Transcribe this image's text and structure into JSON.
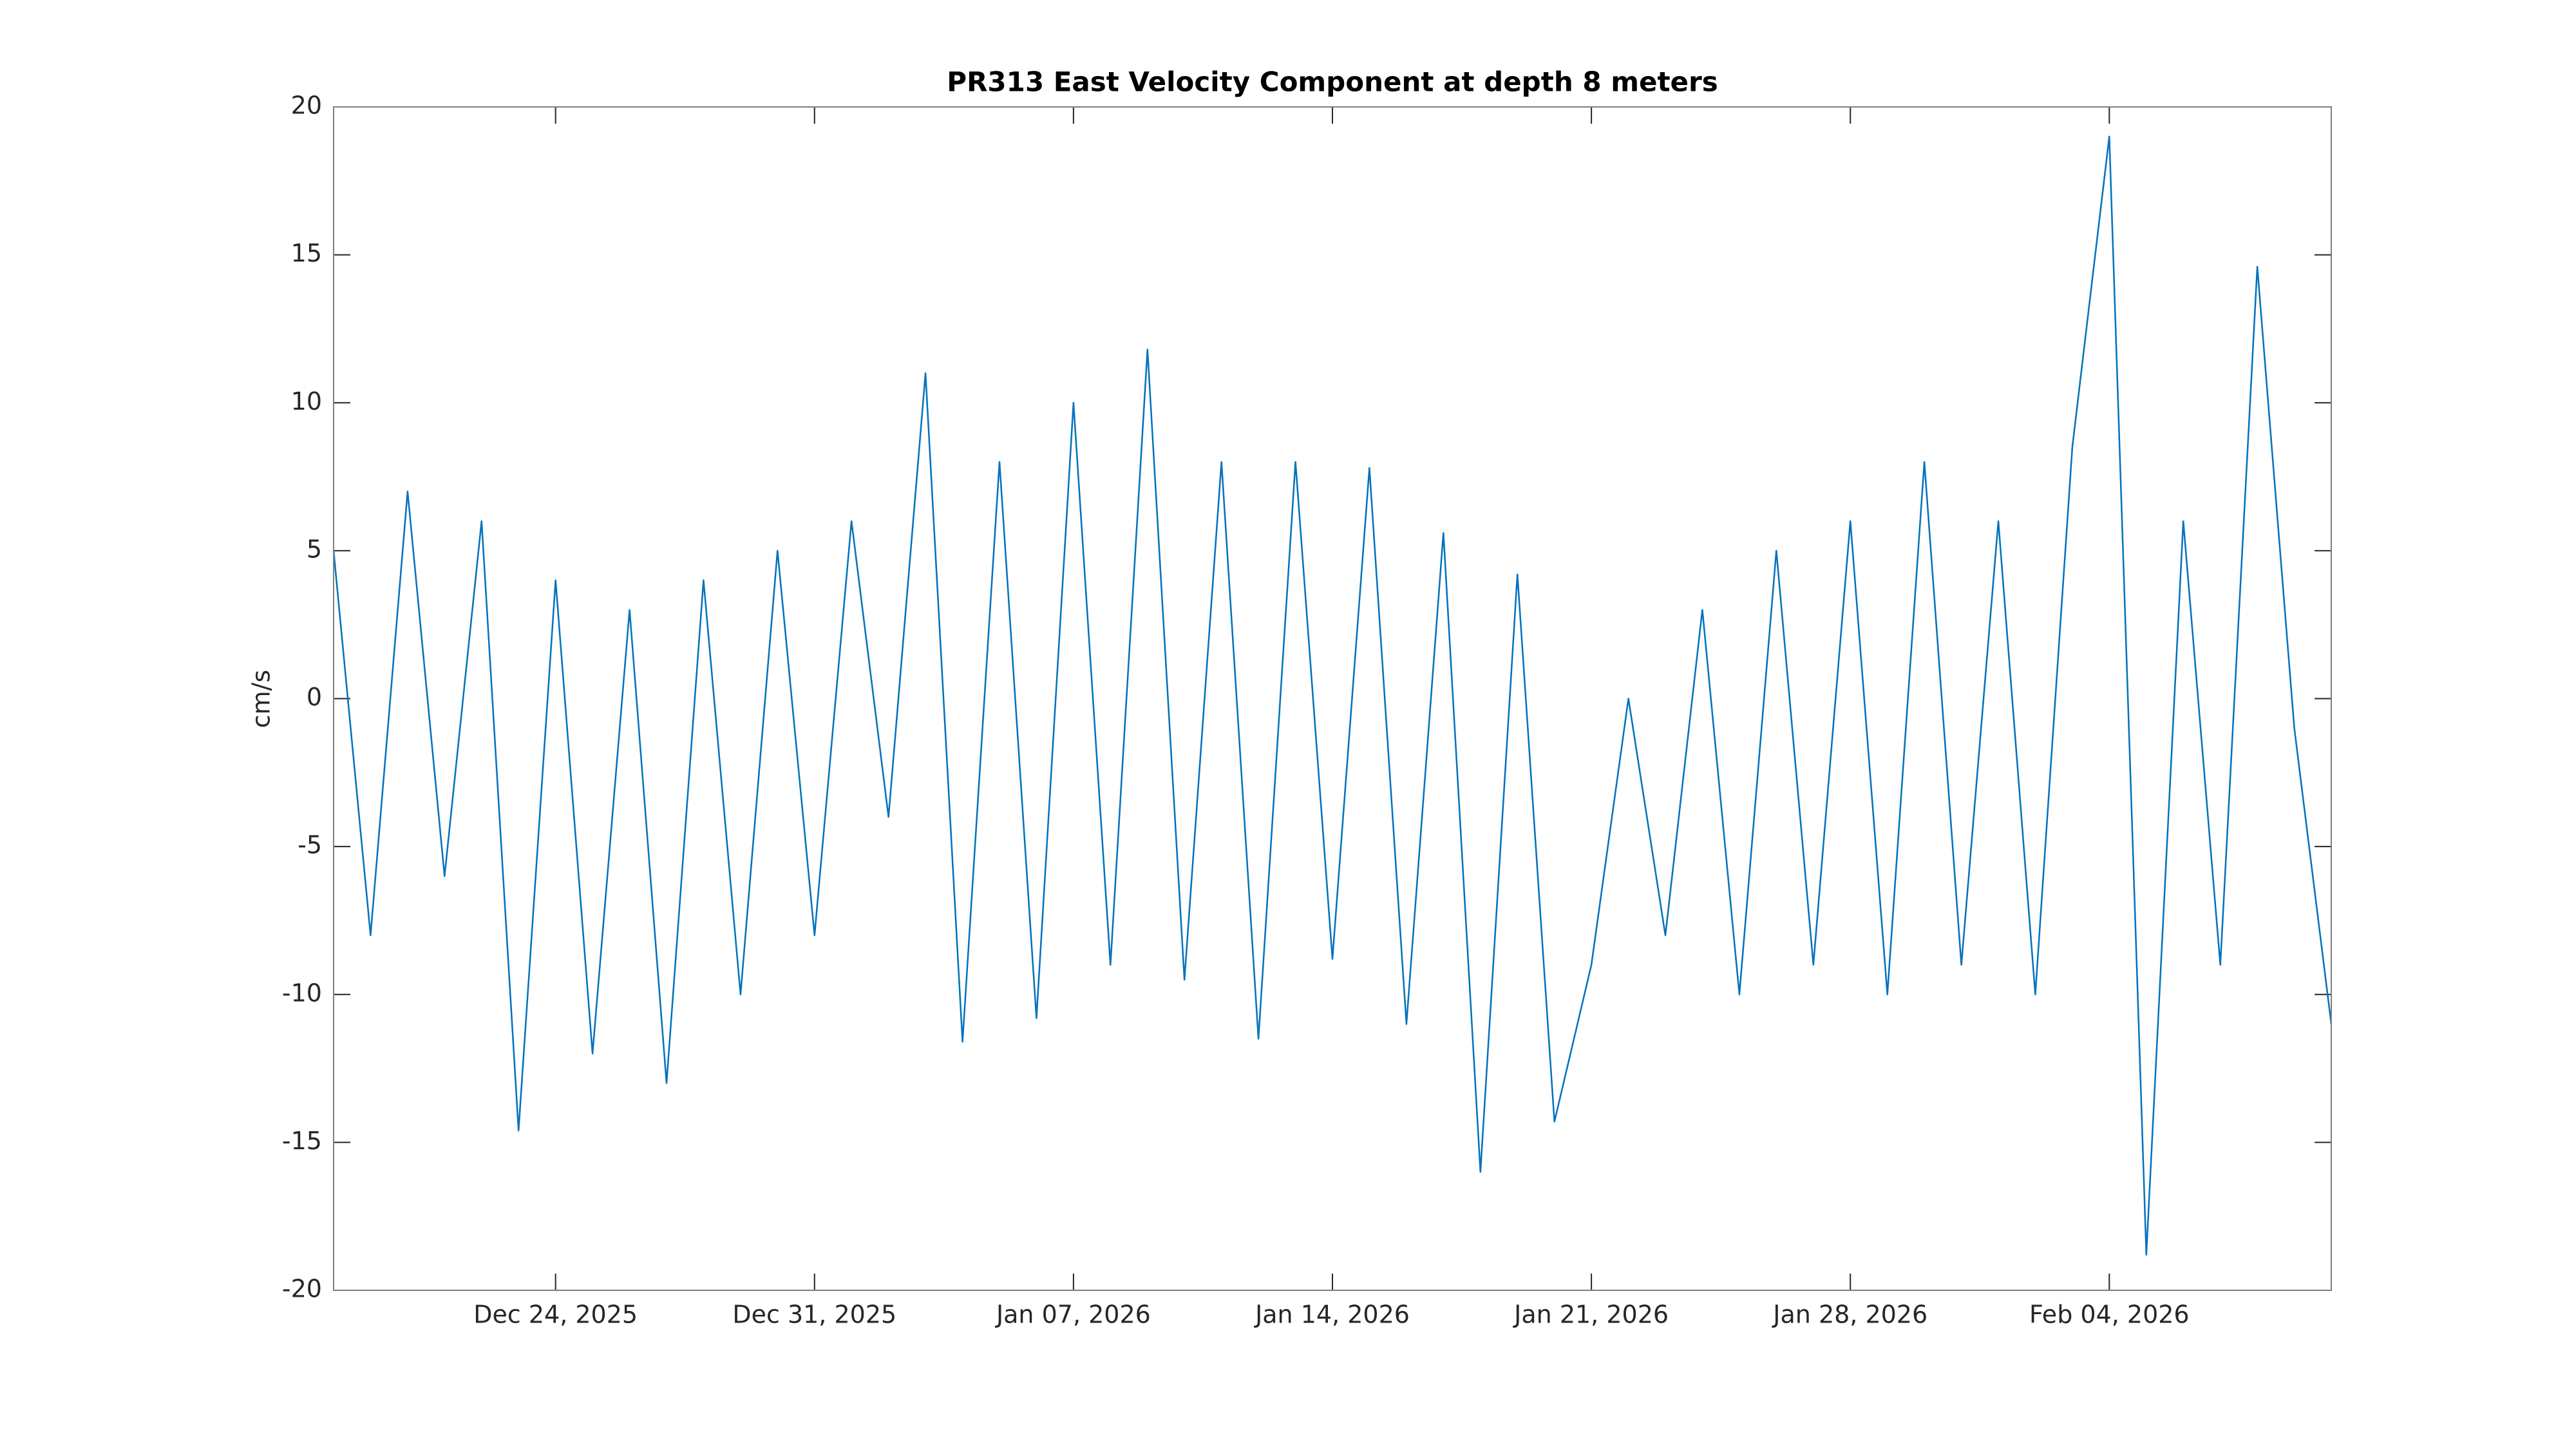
{
  "chart_data": {
    "type": "line",
    "title": "PR313 East Velocity Component at depth 8 meters",
    "ylabel": "cm/s",
    "color": "#0072bd",
    "x": [
      "2025-12-18",
      "2025-12-19",
      "2025-12-20",
      "2025-12-21",
      "2025-12-22",
      "2025-12-23",
      "2025-12-24",
      "2025-12-25",
      "2025-12-26",
      "2025-12-27",
      "2025-12-28",
      "2025-12-29",
      "2025-12-30",
      "2025-12-31",
      "2026-01-01",
      "2026-01-02",
      "2026-01-03",
      "2026-01-04",
      "2026-01-05",
      "2026-01-06",
      "2026-01-07",
      "2026-01-08",
      "2026-01-09",
      "2026-01-10",
      "2026-01-11",
      "2026-01-12",
      "2026-01-13",
      "2026-01-14",
      "2026-01-15",
      "2026-01-16",
      "2026-01-17",
      "2026-01-18",
      "2026-01-19",
      "2026-01-20",
      "2026-01-21",
      "2026-01-22",
      "2026-01-23",
      "2026-01-24",
      "2026-01-25",
      "2026-01-26",
      "2026-01-27",
      "2026-01-28",
      "2026-01-29",
      "2026-01-30",
      "2026-01-31",
      "2026-02-01",
      "2026-02-02",
      "2026-02-03",
      "2026-02-04",
      "2026-02-05",
      "2026-02-06",
      "2026-02-07",
      "2026-02-08",
      "2026-02-09",
      "2026-02-10"
    ],
    "values": [
      5,
      -8,
      7,
      -6,
      6,
      -14.6,
      4,
      -12,
      3,
      -13,
      4,
      -10,
      5,
      -8,
      6,
      -4,
      11,
      -11.6,
      8,
      -10.8,
      10,
      -9,
      11.8,
      -9.5,
      8,
      -11.5,
      8,
      -8.8,
      7.8,
      -11,
      5.6,
      -16,
      4.2,
      -14.3,
      -9,
      0,
      -8,
      3,
      -10,
      5,
      -9,
      6,
      -10,
      8,
      -9,
      6,
      -10,
      8.5,
      19,
      -18.8,
      6,
      -9,
      14.6,
      -1,
      -11
    ],
    "xlim": [
      "2025-12-18",
      "2026-02-10"
    ],
    "xticks": [
      {
        "value": "2025-12-24",
        "label": "Dec 24, 2025"
      },
      {
        "value": "2025-12-31",
        "label": "Dec 31, 2025"
      },
      {
        "value": "2026-01-07",
        "label": "Jan 07, 2026"
      },
      {
        "value": "2026-01-14",
        "label": "Jan 14, 2026"
      },
      {
        "value": "2026-01-21",
        "label": "Jan 21, 2026"
      },
      {
        "value": "2026-01-28",
        "label": "Jan 28, 2026"
      },
      {
        "value": "2026-02-04",
        "label": "Feb 04, 2026"
      }
    ],
    "ylim": [
      -20,
      20
    ],
    "yticks": [
      -20,
      -15,
      -10,
      -5,
      0,
      5,
      10,
      15,
      20
    ],
    "grid": false
  }
}
